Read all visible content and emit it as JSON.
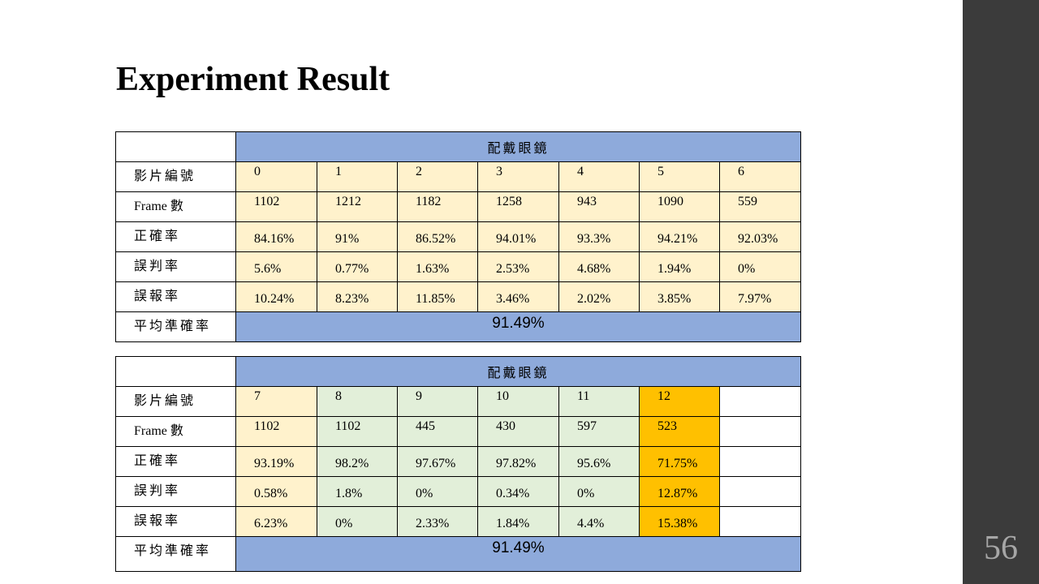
{
  "slide": {
    "title": "Experiment Result",
    "page_number": "56"
  },
  "table1": {
    "header": "配戴眼鏡",
    "row_labels": [
      "影片編號",
      "Frame 數",
      "正確率",
      "誤判率",
      "誤報率",
      "平均準確率"
    ],
    "video_ids": [
      "0",
      "1",
      "2",
      "3",
      "4",
      "5",
      "6"
    ],
    "frames": [
      "1102",
      "1212",
      "1182",
      "1258",
      "943",
      "1090",
      "559"
    ],
    "accuracy": [
      "84.16%",
      "91%",
      "86.52%",
      "94.01%",
      "93.3%",
      "94.21%",
      "92.03%"
    ],
    "misjudge": [
      "5.6%",
      "0.77%",
      "1.63%",
      "2.53%",
      "4.68%",
      "1.94%",
      "0%"
    ],
    "false_alarm": [
      "10.24%",
      "8.23%",
      "11.85%",
      "3.46%",
      "2.02%",
      "3.85%",
      "7.97%"
    ],
    "average": "91.49%"
  },
  "table2": {
    "header": "配戴眼鏡",
    "row_labels": [
      "影片編號",
      "Frame 數",
      "正確率",
      "誤判率",
      "誤報率",
      "平均準確率"
    ],
    "video_ids": [
      "7",
      "8",
      "9",
      "10",
      "11",
      "12",
      ""
    ],
    "frames": [
      "1102",
      "1102",
      "445",
      "430",
      "597",
      "523",
      ""
    ],
    "accuracy": [
      "93.19%",
      "98.2%",
      "97.67%",
      "97.82%",
      "95.6%",
      "71.75%",
      ""
    ],
    "misjudge": [
      "0.58%",
      "1.8%",
      "0%",
      "0.34%",
      "0%",
      "12.87%",
      ""
    ],
    "false_alarm": [
      "6.23%",
      "0%",
      "2.33%",
      "1.84%",
      "4.4%",
      "15.38%",
      ""
    ],
    "average": "91.49%"
  },
  "colors": {
    "header_blue": "#8eaadb",
    "cell_yellow": "#fff2cc",
    "cell_green": "#e2efd9",
    "cell_orange": "#ffc000",
    "sidebar": "#3b3b3b"
  }
}
